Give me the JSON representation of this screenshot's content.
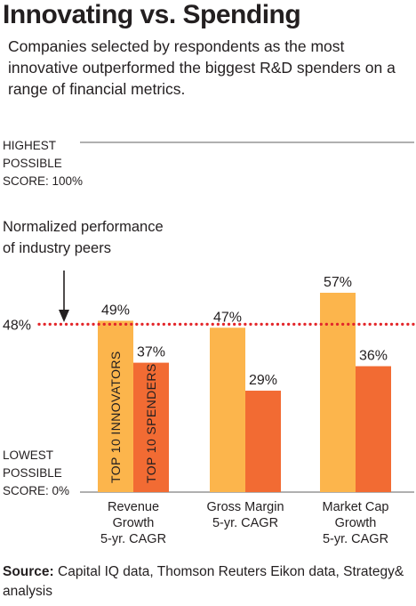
{
  "title": "Innovating vs. Spending",
  "subtitle": "Companies selected by respondents as the most innovative outperformed the biggest R&D spenders on a range of financial metrics.",
  "source": {
    "label": "Source:",
    "text": " Capital IQ data, Thomson Reuters Eikon data, Strategy& analysis"
  },
  "colors": {
    "innovators": "#fcb54c",
    "spenders": "#f26b33",
    "peer_line": "#e3262a",
    "top_line": "#808080"
  },
  "chart_data": {
    "type": "bar",
    "categories": [
      [
        "Revenue",
        "Growth",
        "5-yr. CAGR"
      ],
      [
        "Gross Margin",
        "5-yr. CAGR"
      ],
      [
        "Market Cap",
        "Growth",
        "5-yr. CAGR"
      ]
    ],
    "series": [
      {
        "name": "TOP 10 INNOVATORS",
        "values": [
          49,
          47,
          57
        ],
        "labels": [
          "49%",
          "47%",
          "57%"
        ]
      },
      {
        "name": "TOP 10 SPENDERS",
        "values": [
          37,
          29,
          36
        ],
        "labels": [
          "37%",
          "29%",
          "36%"
        ]
      }
    ],
    "ylim": [
      0,
      100
    ],
    "top_label": [
      "HIGHEST",
      "POSSIBLE",
      "SCORE: 100%"
    ],
    "bottom_label": [
      "LOWEST",
      "POSSIBLE",
      "SCORE: 0%"
    ],
    "reference": {
      "value": 48,
      "label": "48%",
      "annotation": [
        "Normalized performance",
        "of industry peers"
      ]
    }
  }
}
